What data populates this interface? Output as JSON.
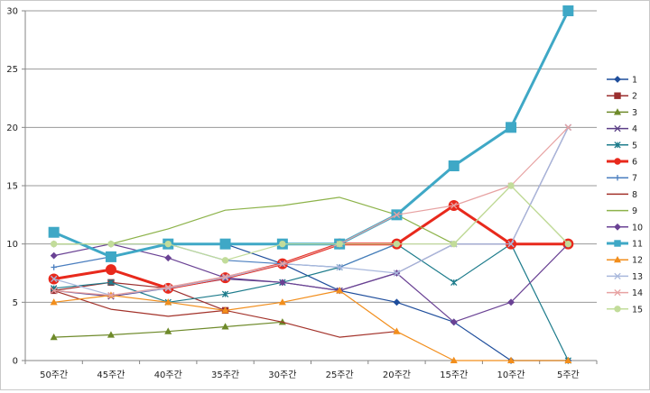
{
  "chart_data": {
    "type": "line",
    "categories": [
      "50주간",
      "45주간",
      "40주간",
      "35주간",
      "30주간",
      "25주간",
      "20주간",
      "15주간",
      "10주간",
      "5주간"
    ],
    "ylim": [
      0,
      30
    ],
    "yticks": [
      0,
      5,
      10,
      15,
      20,
      25,
      30
    ],
    "grid": true,
    "legend_position": "right",
    "series": [
      {
        "name": "1",
        "color": "#1f4e9c",
        "marker": "diamond",
        "width": 1.2,
        "values": [
          10,
          10,
          10,
          10,
          8.3,
          6,
          5,
          3.3,
          0,
          0
        ]
      },
      {
        "name": "2",
        "color": "#9b2f2f",
        "marker": "square",
        "width": 1.2,
        "values": [
          6,
          6.7,
          6.2,
          4.3,
          null,
          null,
          null,
          null,
          null,
          null
        ]
      },
      {
        "name": "3",
        "color": "#6e8a2a",
        "marker": "triangle",
        "width": 1.2,
        "values": [
          2,
          2.2,
          2.5,
          2.9,
          3.3,
          null,
          null,
          null,
          null,
          null
        ]
      },
      {
        "name": "4",
        "color": "#5a3e86",
        "marker": "x",
        "width": 1.2,
        "values": [
          6,
          5.5,
          6.2,
          7,
          6.7,
          6,
          7.5,
          10,
          10,
          20
        ]
      },
      {
        "name": "5",
        "color": "#1e7c8c",
        "marker": "star",
        "width": 1.2,
        "values": [
          6.2,
          6.7,
          5,
          5.7,
          6.7,
          8,
          10,
          6.7,
          10,
          0
        ]
      },
      {
        "name": "6",
        "color": "#e8291c",
        "marker": "circle",
        "width": 3,
        "values": [
          7,
          7.8,
          6.2,
          7.1,
          8.3,
          10,
          10,
          13.3,
          10,
          10
        ]
      },
      {
        "name": "7",
        "color": "#4a7ebf",
        "marker": "plus",
        "width": 1.2,
        "values": [
          8,
          8.9,
          10,
          8.6,
          8.3,
          8,
          10,
          null,
          null,
          null
        ]
      },
      {
        "name": "8",
        "color": "#a3322a",
        "marker": "none",
        "width": 1.2,
        "values": [
          6,
          4.4,
          3.8,
          4.3,
          3.3,
          2,
          2.5,
          null,
          null,
          null
        ]
      },
      {
        "name": "9",
        "color": "#8db34a",
        "marker": "none",
        "width": 1.2,
        "values": [
          10,
          10,
          11.3,
          12.9,
          13.3,
          14,
          12.5,
          10,
          15,
          10
        ]
      },
      {
        "name": "10",
        "color": "#6a4294",
        "marker": "diamond",
        "width": 1.2,
        "values": [
          9,
          10,
          8.8,
          7.1,
          6.7,
          6,
          7.5,
          3.3,
          5,
          10
        ]
      },
      {
        "name": "11",
        "color": "#3fa8c6",
        "marker": "square",
        "width": 3,
        "values": [
          11,
          8.9,
          10,
          10,
          10,
          10,
          12.5,
          16.7,
          20,
          30
        ]
      },
      {
        "name": "12",
        "color": "#f28e1c",
        "marker": "triangle",
        "width": 1.2,
        "values": [
          5,
          5.6,
          5,
          4.3,
          5,
          6,
          2.5,
          0,
          0,
          0
        ]
      },
      {
        "name": "13",
        "color": "#a9b8dc",
        "marker": "x",
        "width": 1.2,
        "values": [
          7,
          5.6,
          6.2,
          7.1,
          8.3,
          8,
          7.5,
          10,
          10,
          20
        ]
      },
      {
        "name": "14",
        "color": "#e7a2a2",
        "marker": "x",
        "width": 1.2,
        "values": [
          6,
          5.6,
          6.3,
          7.2,
          8.3,
          10,
          12.5,
          13.3,
          15,
          20
        ]
      },
      {
        "name": "15",
        "color": "#c2dc9a",
        "marker": "circle",
        "width": 1.2,
        "values": [
          10,
          10,
          10,
          8.6,
          10,
          10,
          10,
          10,
          15,
          10
        ]
      }
    ]
  }
}
